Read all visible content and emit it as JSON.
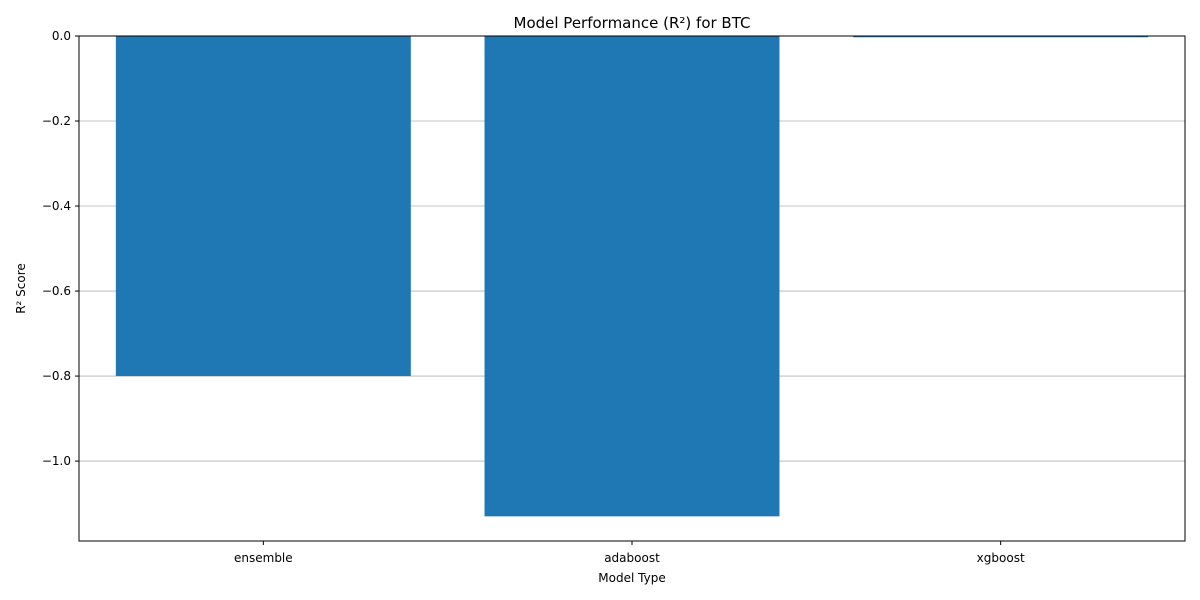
{
  "chart_data": {
    "type": "bar",
    "title": "Model Performance (R²) for BTC",
    "xlabel": "Model Type",
    "ylabel": "R² Score",
    "categories": [
      "ensemble",
      "adaboost",
      "xgboost"
    ],
    "values": [
      -0.8,
      -1.13,
      -0.003
    ],
    "ylim": [
      -1.188,
      0.0
    ],
    "yticks": [
      0.0,
      -0.2,
      -0.4,
      -0.6,
      -0.8,
      -1.0
    ],
    "ytick_labels": [
      "0.0",
      "−0.2",
      "−0.4",
      "−0.6",
      "−0.8",
      "−1.0"
    ],
    "grid": "y",
    "bar_color": "#1f77b4"
  }
}
